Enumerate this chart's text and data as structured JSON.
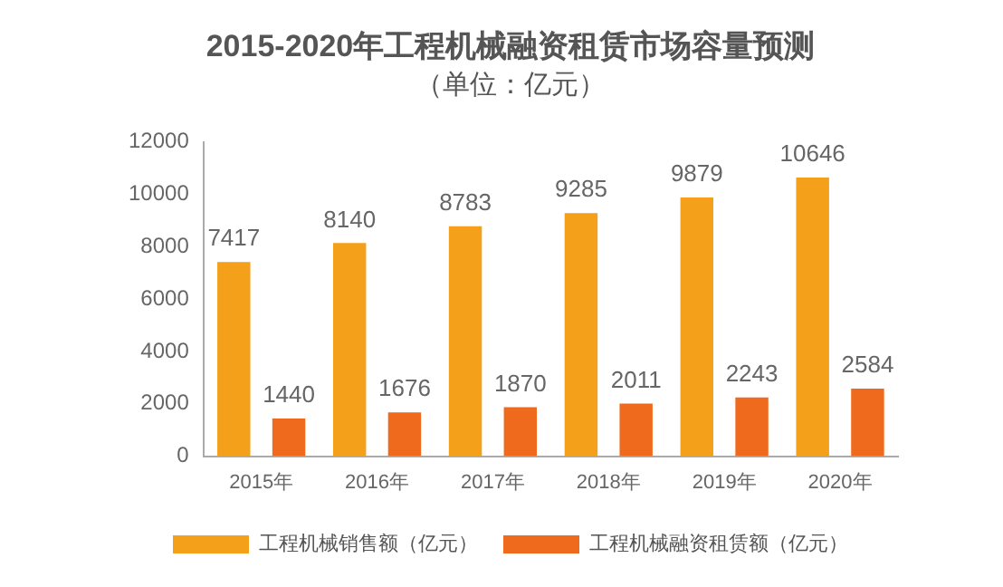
{
  "chart_data": {
    "type": "bar",
    "title": "2015-2020年工程机械融资租赁市场容量预测",
    "subtitle": "（单位：亿元）",
    "categories": [
      "2015年",
      "2016年",
      "2017年",
      "2018年",
      "2019年",
      "2020年"
    ],
    "series": [
      {
        "name": "工程机械销售额（亿元）",
        "color": "#f5a01a",
        "values": [
          7417,
          8140,
          8783,
          9285,
          9879,
          10646
        ]
      },
      {
        "name": "工程机械融资租赁额（亿元）",
        "color": "#f06a1e",
        "values": [
          1440,
          1676,
          1870,
          2011,
          2243,
          2584
        ]
      }
    ],
    "ylim": [
      0,
      12000
    ],
    "yticks": [
      0,
      2000,
      4000,
      6000,
      8000,
      10000,
      12000
    ],
    "grid": false,
    "legend": "bottom",
    "data_labels": true
  }
}
